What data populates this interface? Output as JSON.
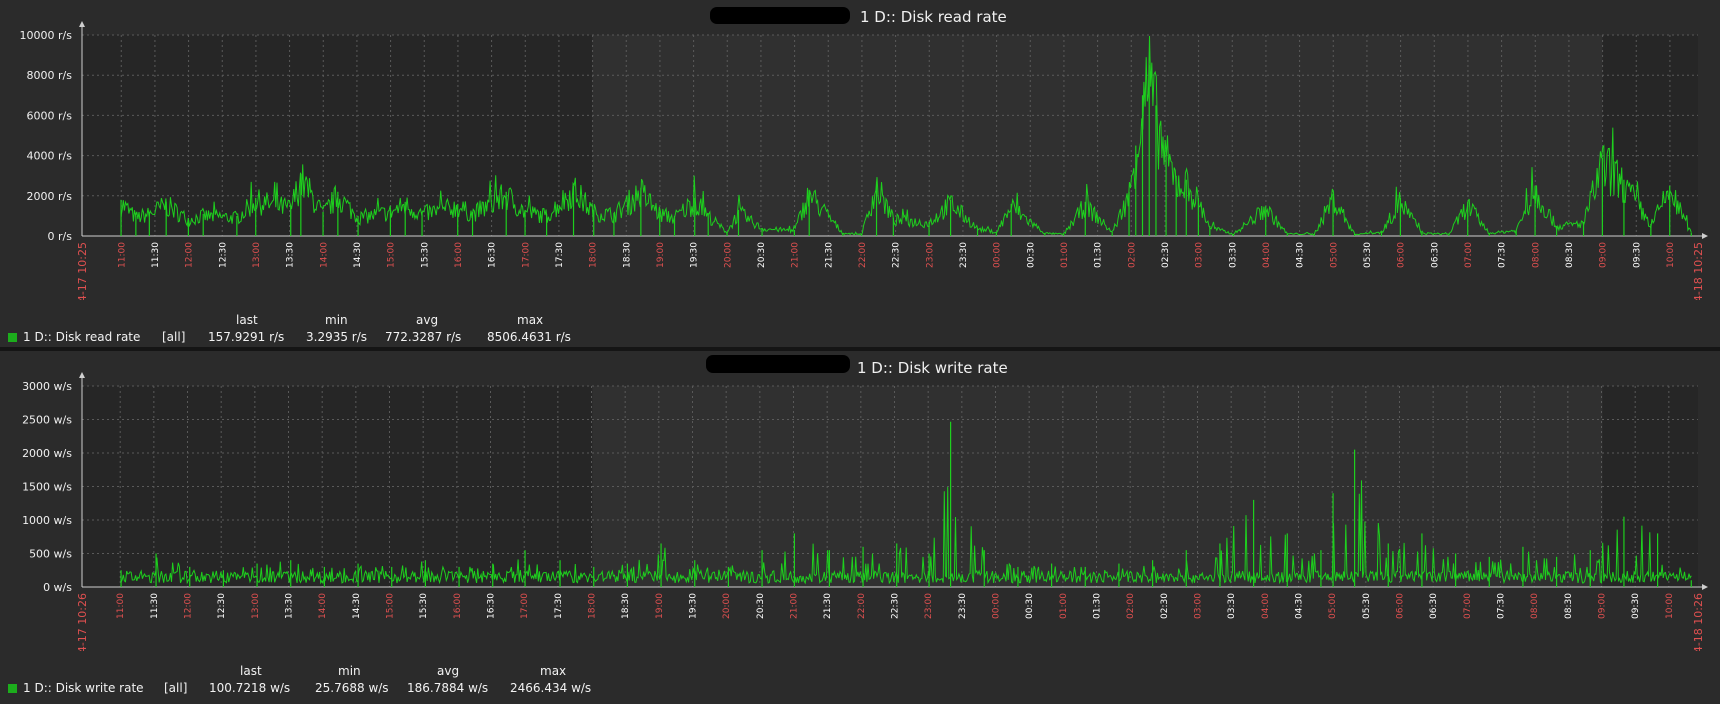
{
  "colors": {
    "background": "#2b2b2b",
    "plot_bg": "#262626",
    "plot_bg_alt": "#303030",
    "series": "#1ecf1e",
    "grid": "#5a5a5a",
    "major_tick": "#e05050",
    "text": "#f0f0f0"
  },
  "charts": {
    "read": {
      "title": "1 D:: Disk read rate",
      "start_label": "04-17 10:25",
      "end_label": "04-18 10:25",
      "legend": {
        "name": "1 D:: Disk read rate",
        "func": "[all]",
        "last_hdr": "last",
        "min_hdr": "min",
        "avg_hdr": "avg",
        "max_hdr": "max",
        "last": "157.9291 r/s",
        "min": "3.2935 r/s",
        "avg": "772.3287 r/s",
        "max": "8506.4631 r/s"
      }
    },
    "write": {
      "title": "1 D:: Disk write rate",
      "start_label": "04-17 10:26",
      "end_label": "04-18 10:26",
      "legend": {
        "name": "1 D:: Disk write rate",
        "func": "[all]",
        "last_hdr": "last",
        "min_hdr": "min",
        "avg_hdr": "avg",
        "max_hdr": "max",
        "last": "100.7218 w/s",
        "min": "25.7688 w/s",
        "avg": "186.7884 w/s",
        "max": "2466.434 w/s"
      }
    }
  },
  "chart_data": [
    {
      "type": "line",
      "title": "1 D:: Disk read rate",
      "y_tick_labels": [
        "0 r/s",
        "2000 r/s",
        "4000 r/s",
        "6000 r/s",
        "8000 r/s",
        "10000 r/s"
      ],
      "ylim": [
        0,
        10000
      ],
      "x_tick_labels": [
        "11:00",
        "11:30",
        "12:00",
        "12:30",
        "13:00",
        "13:30",
        "14:00",
        "14:30",
        "15:00",
        "15:30",
        "16:00",
        "16:30",
        "17:00",
        "17:30",
        "18:00",
        "18:30",
        "19:00",
        "19:30",
        "20:00",
        "20:30",
        "21:00",
        "21:30",
        "22:00",
        "22:30",
        "23:00",
        "23:30",
        "00:00",
        "00:30",
        "01:00",
        "01:30",
        "02:00",
        "02:30",
        "03:00",
        "03:30",
        "04:00",
        "04:30",
        "05:00",
        "05:30",
        "06:00",
        "06:30",
        "07:00",
        "07:30",
        "08:00",
        "08:30",
        "09:00",
        "09:30",
        "10:00"
      ],
      "grid": true,
      "series": [
        {
          "name": "1 D:: Disk read rate",
          "x_hours": [
            0.58,
            0.8,
            1.0,
            1.25,
            1.58,
            1.8,
            2.3,
            2.58,
            3.1,
            3.25,
            3.58,
            3.8,
            4.1,
            4.58,
            4.8,
            5.05,
            5.58,
            5.8,
            6.3,
            6.58,
            6.9,
            7.3,
            7.6,
            7.9,
            8.3,
            8.58,
            8.8,
            9.1,
            9.3,
            9.58,
            9.75,
            10.1,
            10.58,
            10.8,
            11.3,
            11.58,
            11.8,
            12.05,
            12.58,
            12.9,
            13.3,
            13.58,
            13.8,
            14.3,
            14.58,
            14.9,
            15.3,
            15.55,
            15.65,
            15.75,
            15.85,
            15.95,
            16.1,
            16.25,
            16.4,
            16.58,
            16.75,
            17.1,
            17.58,
            17.9,
            18.3,
            18.58,
            18.9,
            19.3,
            19.58,
            19.9,
            20.3,
            20.58,
            20.9,
            21.3,
            21.58,
            21.9,
            22.3,
            22.58,
            22.9,
            23.3,
            23.58,
            23.9
          ],
          "values": [
            1800,
            1000,
            1200,
            1700,
            900,
            1100,
            1000,
            1900,
            1500,
            3100,
            1200,
            2200,
            1000,
            1300,
            1700,
            1200,
            1600,
            1200,
            2200,
            1300,
            1100,
            2500,
            1300,
            1150,
            2400,
            1200,
            1000,
            1900,
            1100,
            200,
            1300,
            400,
            300,
            2300,
            150,
            100,
            2700,
            900,
            700,
            1800,
            400,
            200,
            1600,
            150,
            100,
            1700,
            200,
            2200,
            4500,
            7000,
            8500,
            6500,
            4200,
            3000,
            2800,
            1900,
            500,
            100,
            1500,
            120,
            100,
            2100,
            100,
            200,
            1900,
            150,
            100,
            1700,
            150,
            300,
            2500,
            500,
            700,
            3900,
            2800,
            600,
            2500,
            157.9
          ]
        }
      ]
    },
    {
      "type": "line",
      "title": "1 D:: Disk write rate",
      "y_tick_labels": [
        "0 w/s",
        "500 w/s",
        "1000 w/s",
        "1500 w/s",
        "2000 w/s",
        "2500 w/s",
        "3000 w/s"
      ],
      "ylim": [
        0,
        3000
      ],
      "x_tick_labels": [
        "11:00",
        "11:30",
        "12:00",
        "12:30",
        "13:00",
        "13:30",
        "14:00",
        "14:30",
        "15:00",
        "15:30",
        "16:00",
        "16:30",
        "17:00",
        "17:30",
        "18:00",
        "18:30",
        "19:00",
        "19:30",
        "20:00",
        "20:30",
        "21:00",
        "21:30",
        "22:00",
        "22:30",
        "23:00",
        "23:30",
        "00:00",
        "00:30",
        "01:00",
        "01:30",
        "02:00",
        "02:30",
        "03:00",
        "03:30",
        "04:00",
        "04:30",
        "05:00",
        "05:30",
        "06:00",
        "06:30",
        "07:00",
        "07:30",
        "08:00",
        "08:30",
        "09:00",
        "09:30",
        "10:00"
      ],
      "grid": true,
      "series": [
        {
          "name": "1 D:: Disk write rate",
          "x_hours": [
            0.58,
            1.1,
            1.6,
            2.1,
            2.6,
            3.1,
            3.6,
            4.1,
            4.6,
            5.1,
            5.6,
            6.1,
            6.58,
            7.1,
            7.6,
            8.1,
            8.6,
            9.1,
            9.6,
            10.1,
            10.58,
            11.1,
            11.6,
            12.1,
            12.58,
            12.9,
            13.4,
            13.9,
            14.4,
            14.9,
            15.4,
            15.9,
            16.4,
            16.9,
            17.4,
            17.9,
            18.4,
            18.58,
            18.9,
            19.4,
            19.9,
            20.4,
            20.9,
            21.4,
            21.9,
            22.4,
            22.9,
            23.4,
            23.9
          ],
          "values": [
            250,
            500,
            300,
            250,
            350,
            400,
            300,
            350,
            300,
            400,
            300,
            350,
            550,
            400,
            300,
            350,
            650,
            400,
            300,
            550,
            800,
            550,
            600,
            650,
            500,
            2466,
            550,
            300,
            350,
            300,
            350,
            400,
            550,
            650,
            1300,
            800,
            550,
            1400,
            2050,
            650,
            800,
            500,
            450,
            600,
            450,
            550,
            1050,
            800,
            100.7
          ]
        }
      ]
    }
  ]
}
